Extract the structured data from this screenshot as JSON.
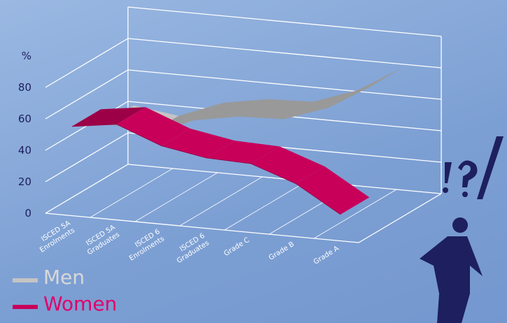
{
  "chart_data": {
    "type": "ribbon3d",
    "y_label": "%",
    "categories": [
      "ISCED 5A Enrolments",
      "ISCED 5A Graduates",
      "ISCED 6 Enrolments",
      "ISCED 6 Graduates",
      "Grade C",
      "Grade B",
      "Grade A"
    ],
    "series": [
      {
        "name": "Men",
        "color": "#c4c4c4",
        "values": [
          45,
          41,
          52,
          57,
          58,
          68,
          85
        ]
      },
      {
        "name": "Women",
        "color": "#c8005a",
        "values": [
          55,
          59,
          48,
          43,
          42,
          32,
          15
        ]
      }
    ],
    "ylim": [
      0,
      100
    ],
    "yticks": [
      0,
      20,
      40,
      60,
      80
    ],
    "grid": true,
    "legend": "bottom-left"
  }
}
